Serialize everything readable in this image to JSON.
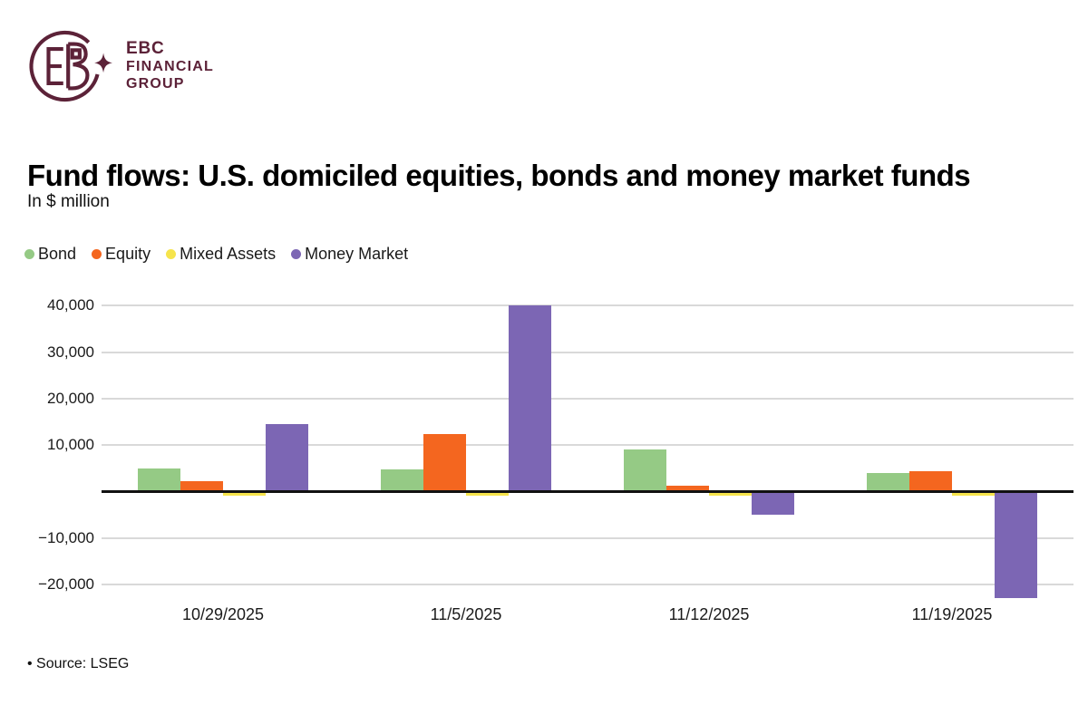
{
  "brand": {
    "line1": "EBC",
    "line2": "FINANCIAL",
    "line3": "GROUP",
    "color": "#5c2238",
    "logo_icon": "ebc-monogram-circle-sparkle-icon"
  },
  "header": {
    "title": "Fund flows: U.S. domiciled equities, bonds and money market funds",
    "subtitle": "In $ million"
  },
  "chart_data": {
    "type": "bar",
    "title": "Fund flows: U.S. domiciled equities, bonds and money market funds",
    "subtitle": "In $ million",
    "categories": [
      "10/29/2025",
      "11/5/2025",
      "11/12/2025",
      "11/19/2025"
    ],
    "series": [
      {
        "name": "Bond",
        "color": "#95ca85",
        "values": [
          5000,
          4700,
          9000,
          3900
        ]
      },
      {
        "name": "Equity",
        "color": "#f4661f",
        "values": [
          2300,
          12400,
          1200,
          4300
        ]
      },
      {
        "name": "Mixed Assets",
        "color": "#f6e44c",
        "values": [
          -800,
          -800,
          -800,
          -900
        ]
      },
      {
        "name": "Money Market",
        "color": "#7c66b4",
        "values": [
          14500,
          40000,
          -4900,
          -23000
        ]
      }
    ],
    "xlabel": "",
    "ylabel": "In $ million",
    "ylim": [
      -23900,
      42400
    ],
    "yticks": [
      40000,
      30000,
      20000,
      10000,
      0,
      -10000,
      -20000
    ],
    "grid": true,
    "zero_line": true,
    "legend_position": "top-left",
    "gridline_color": "#d9d9d9",
    "zero_line_color": "#111111"
  },
  "footer": {
    "source": "• Source: LSEG"
  }
}
